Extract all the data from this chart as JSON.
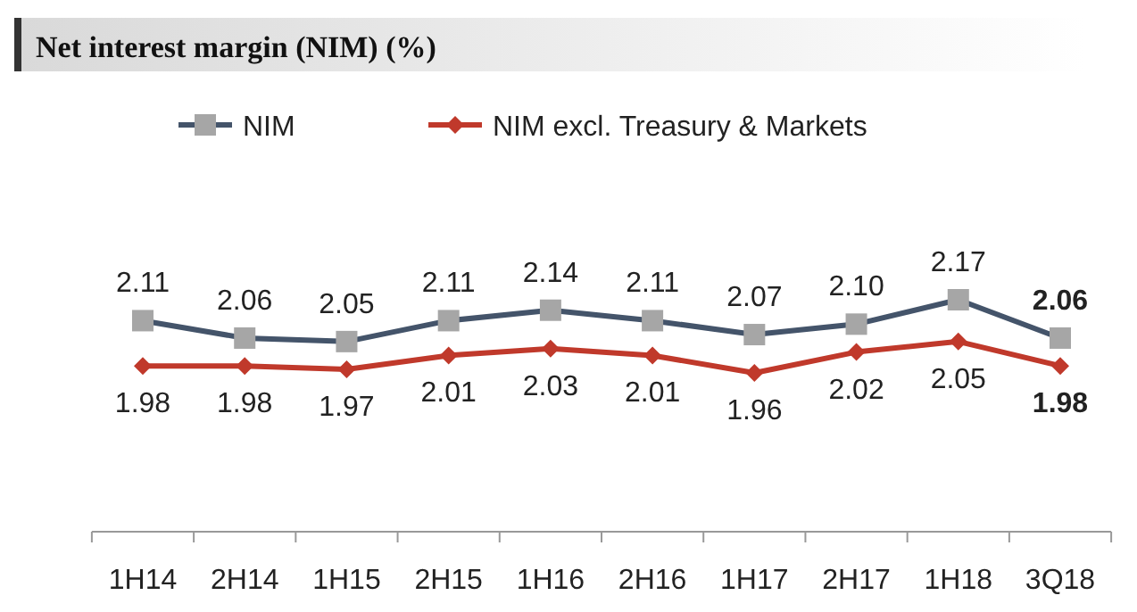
{
  "chart_data": {
    "type": "line",
    "title": "Net interest margin (NIM) (%)",
    "categories": [
      "1H14",
      "2H14",
      "1H15",
      "2H15",
      "1H16",
      "2H16",
      "1H17",
      "2H17",
      "1H18",
      "3Q18"
    ],
    "series": [
      {
        "name": "NIM",
        "color": "#44546a",
        "marker": "square",
        "values": [
          2.11,
          2.06,
          2.05,
          2.11,
          2.14,
          2.11,
          2.07,
          2.1,
          2.17,
          2.06
        ],
        "value_labels": [
          "2.11",
          "2.06",
          "2.05",
          "2.11",
          "2.14",
          "2.11",
          "2.07",
          "2.10",
          "2.17",
          "2.06"
        ]
      },
      {
        "name": "NIM excl. Treasury & Markets",
        "color": "#c0392b",
        "marker": "diamond",
        "values": [
          1.98,
          1.98,
          1.97,
          2.01,
          2.03,
          2.01,
          1.96,
          2.02,
          2.05,
          1.98
        ],
        "value_labels": [
          "1.98",
          "1.98",
          "1.97",
          "2.01",
          "2.03",
          "2.01",
          "1.96",
          "2.02",
          "2.05",
          "1.98"
        ]
      }
    ],
    "legend": "top",
    "grid": false
  }
}
